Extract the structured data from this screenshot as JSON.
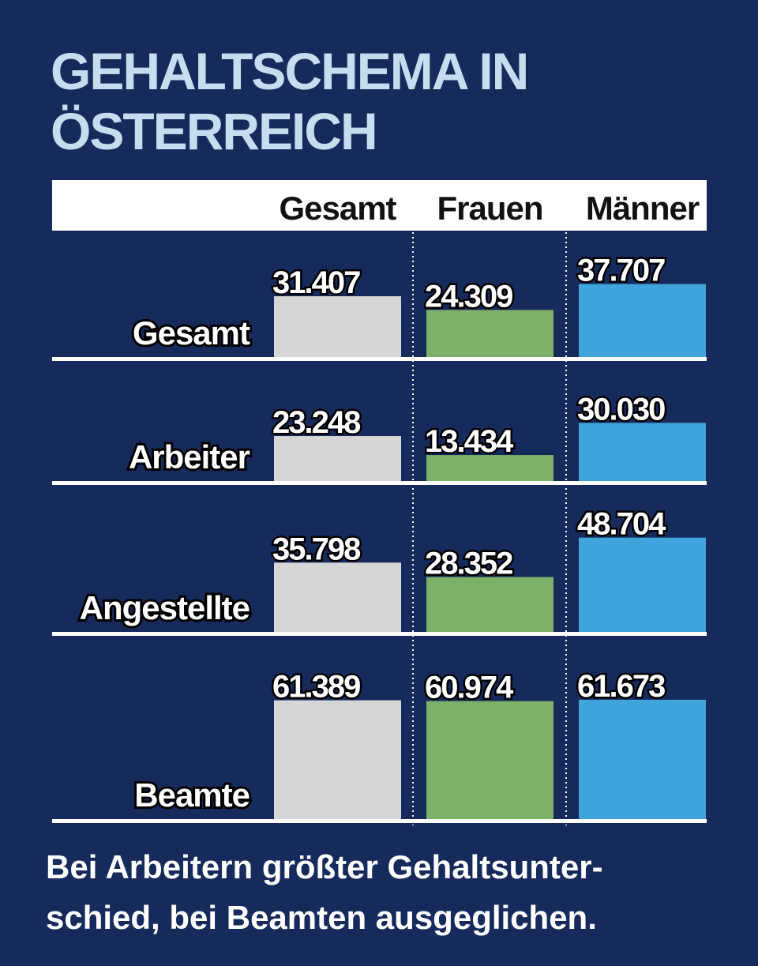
{
  "chart_data": {
    "type": "bar",
    "title": "GEHALTSCHEMA IN ÖSTERREICH",
    "categories": [
      "Gesamt",
      "Arbeiter",
      "Angestellte",
      "Beamte"
    ],
    "series": [
      {
        "name": "Gesamt",
        "color": "#d6d6d6",
        "values": [
          31407,
          23248,
          35798,
          61389
        ],
        "value_labels": [
          "31.407",
          "23.248",
          "35.798",
          "61.389"
        ]
      },
      {
        "name": "Frauen",
        "color": "#7db169",
        "values": [
          24309,
          13434,
          28352,
          60974
        ],
        "value_labels": [
          "24.309",
          "13.434",
          "28.352",
          "60.974"
        ]
      },
      {
        "name": "Männer",
        "color": "#40a4dc",
        "values": [
          37707,
          30030,
          48704,
          61673
        ],
        "value_labels": [
          "37.707",
          "30.030",
          "48.704",
          "61.673"
        ]
      }
    ],
    "caption": [
      "Bei Arbeitern größter Gehaltsunter-",
      "schied, bei Beamten ausgeglichen."
    ]
  }
}
